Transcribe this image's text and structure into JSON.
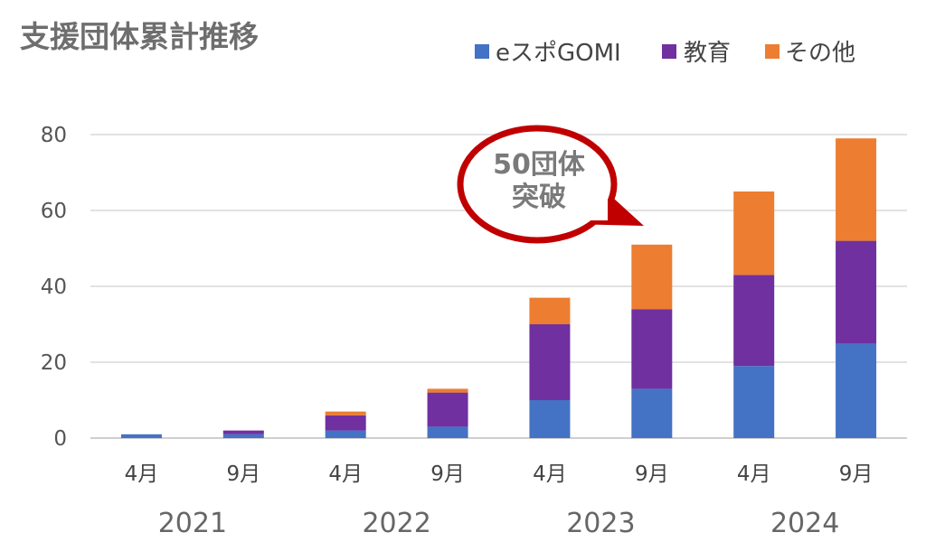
{
  "chart_data": {
    "type": "bar",
    "stacked": true,
    "title": "支援団体累計推移",
    "categories": [
      "4月",
      "9月",
      "4月",
      "9月",
      "4月",
      "9月",
      "4月",
      "9月"
    ],
    "groups": [
      "2021",
      "2022",
      "2023",
      "2024"
    ],
    "series": [
      {
        "name": "eスポGOMI",
        "color": "#4472C4",
        "values": [
          1,
          1,
          2,
          3,
          10,
          13,
          19,
          25
        ]
      },
      {
        "name": "教育",
        "color": "#7030A0",
        "values": [
          0,
          1,
          4,
          9,
          20,
          21,
          24,
          27
        ]
      },
      {
        "name": "その他",
        "color": "#ED7D31",
        "values": [
          0,
          0,
          1,
          1,
          7,
          17,
          22,
          27
        ]
      }
    ],
    "ylim": [
      0,
      80
    ],
    "yticks": [
      0,
      20,
      40,
      60,
      80
    ],
    "grid": true,
    "legend_position": "top-right",
    "annotation": {
      "line1": "50団体",
      "line2": "突破",
      "color": "#C00000"
    }
  }
}
